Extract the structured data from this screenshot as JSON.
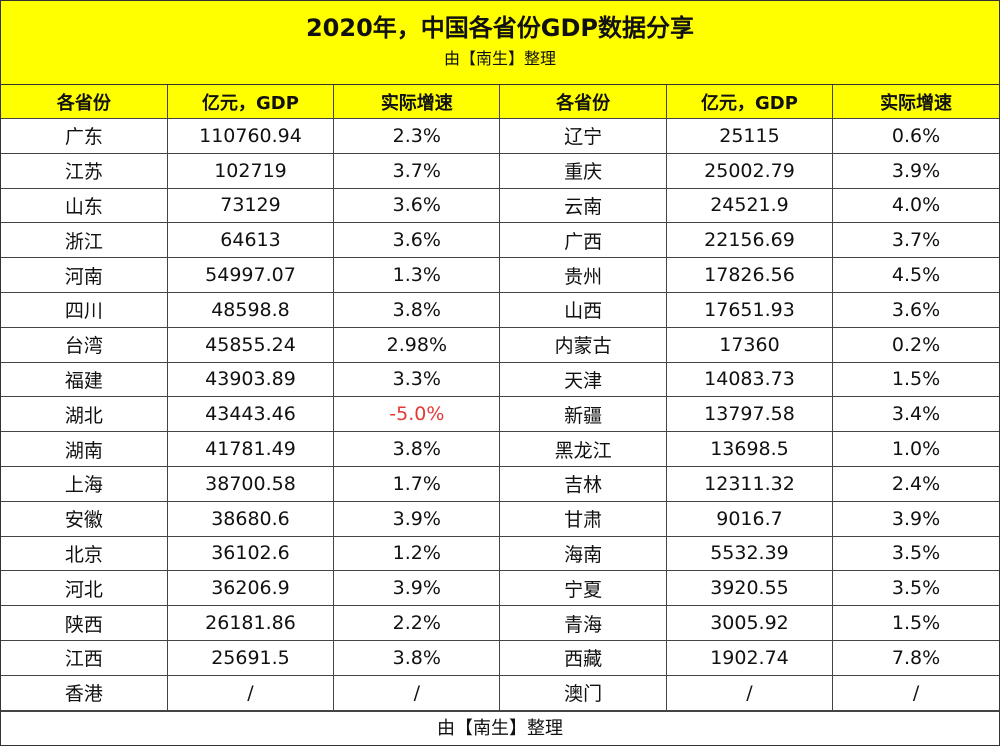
{
  "header": {
    "title": "2020年，中国各省份GDP数据分享",
    "subtitle": "由【南生】整理"
  },
  "columns": [
    "各省份",
    "亿元，GDP",
    "实际增速",
    "各省份",
    "亿元，GDP",
    "实际增速"
  ],
  "rows": [
    {
      "p1": "广东",
      "g1": "110760.94",
      "r1": "2.3%",
      "p2": "辽宁",
      "g2": "25115",
      "r2": "0.6%"
    },
    {
      "p1": "江苏",
      "g1": "102719",
      "r1": "3.7%",
      "p2": "重庆",
      "g2": "25002.79",
      "r2": "3.9%"
    },
    {
      "p1": "山东",
      "g1": "73129",
      "r1": "3.6%",
      "p2": "云南",
      "g2": "24521.9",
      "r2": "4.0%"
    },
    {
      "p1": "浙江",
      "g1": "64613",
      "r1": "3.6%",
      "p2": "广西",
      "g2": "22156.69",
      "r2": "3.7%"
    },
    {
      "p1": "河南",
      "g1": "54997.07",
      "r1": "1.3%",
      "p2": "贵州",
      "g2": "17826.56",
      "r2": "4.5%"
    },
    {
      "p1": "四川",
      "g1": "48598.8",
      "r1": "3.8%",
      "p2": "山西",
      "g2": "17651.93",
      "r2": "3.6%"
    },
    {
      "p1": "台湾",
      "g1": "45855.24",
      "r1": "2.98%",
      "p2": "内蒙古",
      "g2": "17360",
      "r2": "0.2%"
    },
    {
      "p1": "福建",
      "g1": "43903.89",
      "r1": "3.3%",
      "p2": "天津",
      "g2": "14083.73",
      "r2": "1.5%"
    },
    {
      "p1": "湖北",
      "g1": "43443.46",
      "r1": "-5.0%",
      "p2": "新疆",
      "g2": "13797.58",
      "r2": "3.4%"
    },
    {
      "p1": "湖南",
      "g1": "41781.49",
      "r1": "3.8%",
      "p2": "黑龙江",
      "g2": "13698.5",
      "r2": "1.0%"
    },
    {
      "p1": "上海",
      "g1": "38700.58",
      "r1": "1.7%",
      "p2": "吉林",
      "g2": "12311.32",
      "r2": "2.4%"
    },
    {
      "p1": "安徽",
      "g1": "38680.6",
      "r1": "3.9%",
      "p2": "甘肃",
      "g2": "9016.7",
      "r2": "3.9%"
    },
    {
      "p1": "北京",
      "g1": "36102.6",
      "r1": "1.2%",
      "p2": "海南",
      "g2": "5532.39",
      "r2": "3.5%"
    },
    {
      "p1": "河北",
      "g1": "36206.9",
      "r1": "3.9%",
      "p2": "宁夏",
      "g2": "3920.55",
      "r2": "3.5%"
    },
    {
      "p1": "陕西",
      "g1": "26181.86",
      "r1": "2.2%",
      "p2": "青海",
      "g2": "3005.92",
      "r2": "1.5%"
    },
    {
      "p1": "江西",
      "g1": "25691.5",
      "r1": "3.8%",
      "p2": "西藏",
      "g2": "1902.74",
      "r2": "7.8%"
    },
    {
      "p1": "香港",
      "g1": "/",
      "r1": "/",
      "p2": "澳门",
      "g2": "/",
      "r2": "/"
    }
  ],
  "negative_color": "#e53935",
  "footer": "由【南生】整理"
}
